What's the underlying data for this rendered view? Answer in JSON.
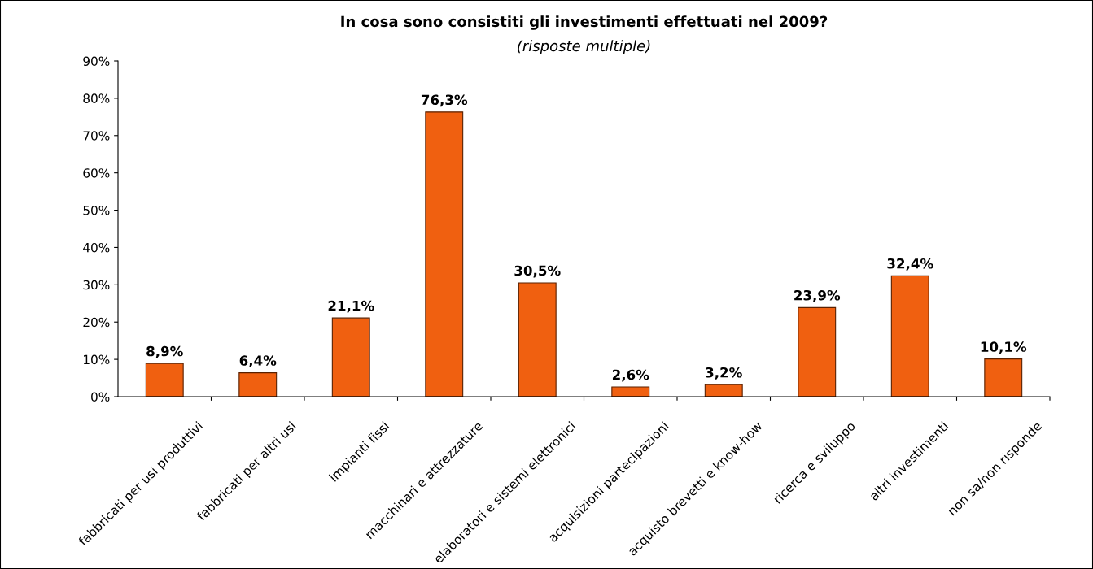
{
  "chart_data": {
    "type": "bar",
    "title": "In cosa sono consistiti gli investimenti effettuati nel 2009?",
    "subtitle": "(risposte multiple)",
    "categories": [
      "fabbricati per usi produttivi",
      "fabbricati per altri usi",
      "impianti fissi",
      "macchinari e attrezzature",
      "elaboratori e sistemi elettronici",
      "acquisizioni partecipazioni",
      "acquisto brevetti e know-how",
      "ricerca e sviluppo",
      "altri investimenti",
      "non sa/non risponde"
    ],
    "values": [
      8.9,
      6.4,
      21.1,
      76.3,
      30.5,
      2.6,
      3.2,
      23.9,
      32.4,
      10.1
    ],
    "value_labels": [
      "8,9%",
      "6,4%",
      "21,1%",
      "76,3%",
      "30,5%",
      "2,6%",
      "3,2%",
      "23,9%",
      "32,4%",
      "10,1%"
    ],
    "color": "#f06010",
    "ylim": [
      0,
      90
    ],
    "yticks": [
      {
        "value": 0,
        "label": "0%"
      },
      {
        "value": 10,
        "label": "10%"
      },
      {
        "value": 20,
        "label": "20%"
      },
      {
        "value": 30,
        "label": "30%"
      },
      {
        "value": 40,
        "label": "40%"
      },
      {
        "value": 50,
        "label": "50%"
      },
      {
        "value": 60,
        "label": "60%"
      },
      {
        "value": 70,
        "label": "70%"
      },
      {
        "value": 80,
        "label": "80%"
      },
      {
        "value": 90,
        "label": "90%"
      }
    ],
    "grid": false
  }
}
